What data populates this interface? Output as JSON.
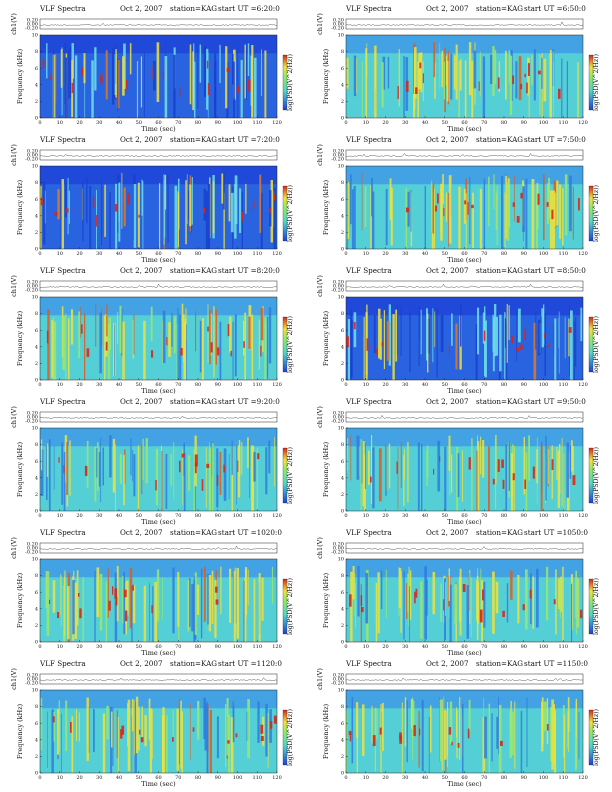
{
  "header_common": {
    "title": "VLF Spectra",
    "station": "station=KAG"
  },
  "labels": {
    "ch_axis": "ch1(V)",
    "freq_axis": "Frequency (kHz)",
    "time_axis": "Time (sec)",
    "colorbar": "log(PSD(V^2/Hz))"
  },
  "colors": {
    "low": "#1d3fd6",
    "mid": "#4fd7c8",
    "high_yellow": "#f0e23a",
    "peak_red": "#d8261a"
  },
  "panels": [
    {
      "date": "Oct 2, 2007",
      "start": "start UT =6:20:0"
    },
    {
      "date": "Oct 2, 2007",
      "start": "start UT =6:50:0"
    },
    {
      "date": "Oct 2, 2007",
      "start": "start UT =7:20:0"
    },
    {
      "date": "Oct 2, 2007",
      "start": "start UT =7:50:0"
    },
    {
      "date": "Oct 2, 2007",
      "start": "start UT =8:20:0"
    },
    {
      "date": "Oct 2, 2007",
      "start": "start UT =8:50:0"
    },
    {
      "date": "Oct 2, 2007",
      "start": "start UT =9:20:0"
    },
    {
      "date": "Oct 2, 2007",
      "start": "start UT =9:50:0"
    },
    {
      "date": "Oct 2, 2007",
      "start": "start UT =1020:0"
    },
    {
      "date": "Oct 2, 2007",
      "start": "start UT =1050:0"
    },
    {
      "date": "Oct 2, 2007",
      "start": "start UT =1120:0"
    },
    {
      "date": "Oct 2, 2007",
      "start": "start UT =1150:0"
    }
  ],
  "chart_data": {
    "type": "heatmap",
    "x_ticks": [
      "0",
      "10",
      "20",
      "30",
      "40",
      "50",
      "60",
      "70",
      "80",
      "90",
      "100",
      "110",
      "120"
    ],
    "xlim": [
      0,
      120
    ],
    "y_ticks": [
      "0",
      "2",
      "4",
      "6",
      "8",
      "10"
    ],
    "ylim": [
      0,
      10
    ],
    "ch_ticks": [
      "0.20",
      "0.00",
      "-0.20"
    ],
    "ch_ylim": [
      -0.2,
      0.2
    ],
    "panels_background": [
      "blue",
      "cyan",
      "blue",
      "cyan",
      "cyan",
      "blue",
      "cyan",
      "cyan",
      "cyan",
      "cyan",
      "cyan",
      "cyan"
    ]
  }
}
